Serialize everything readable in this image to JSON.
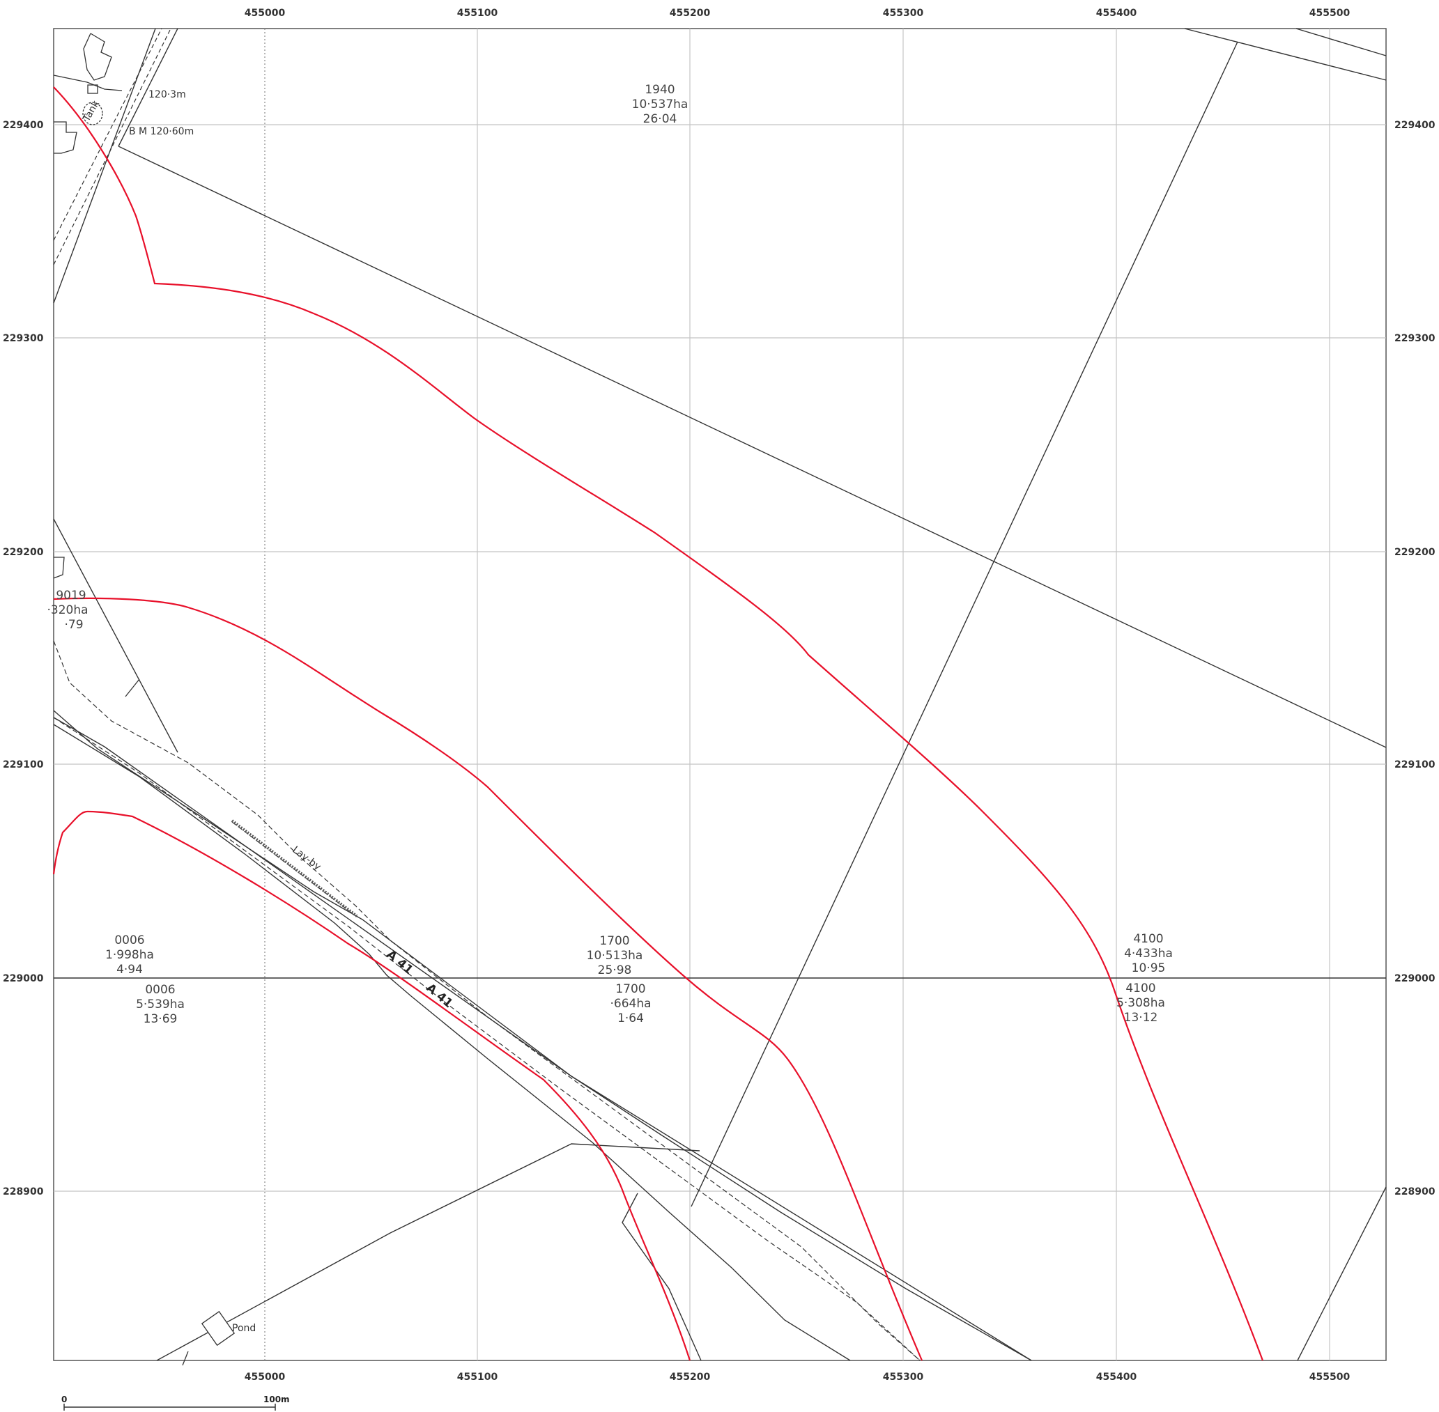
{
  "grid": {
    "eastings": [
      "455000",
      "455100",
      "455200",
      "455300",
      "455400",
      "455500"
    ],
    "northings": [
      "229400",
      "229300",
      "229200",
      "229100",
      "229000",
      "228900"
    ]
  },
  "parcels": [
    {
      "id": "1940",
      "area": "10·537ha",
      "acres": "26·04"
    },
    {
      "id": "9019",
      "area": "·320ha",
      "acres": "·79"
    },
    {
      "id": "0006",
      "area": "1·998ha",
      "acres": "4·94"
    },
    {
      "id": "0006",
      "area": "5·539ha",
      "acres": "13·69"
    },
    {
      "id": "1700",
      "area": "10·513ha",
      "acres": "25·98"
    },
    {
      "id": "1700",
      "area": "·664ha",
      "acres": "1·64"
    },
    {
      "id": "4100",
      "area": "4·433ha",
      "acres": "10·95"
    },
    {
      "id": "4100",
      "area": "5·308ha",
      "acres": "13·12"
    }
  ],
  "labels": {
    "spot_height": "120·3m",
    "benchmark": "B M  120·60m",
    "layby": "Lay-by",
    "road_a": "A 41",
    "road_b": "A 41",
    "pond": "Pond",
    "tank": "Tank"
  },
  "scale_bar": {
    "start": "0",
    "end": "100m"
  },
  "colors": {
    "boundary": "#e8102a",
    "lines": "#333333",
    "grid": "#bbbbbb"
  }
}
